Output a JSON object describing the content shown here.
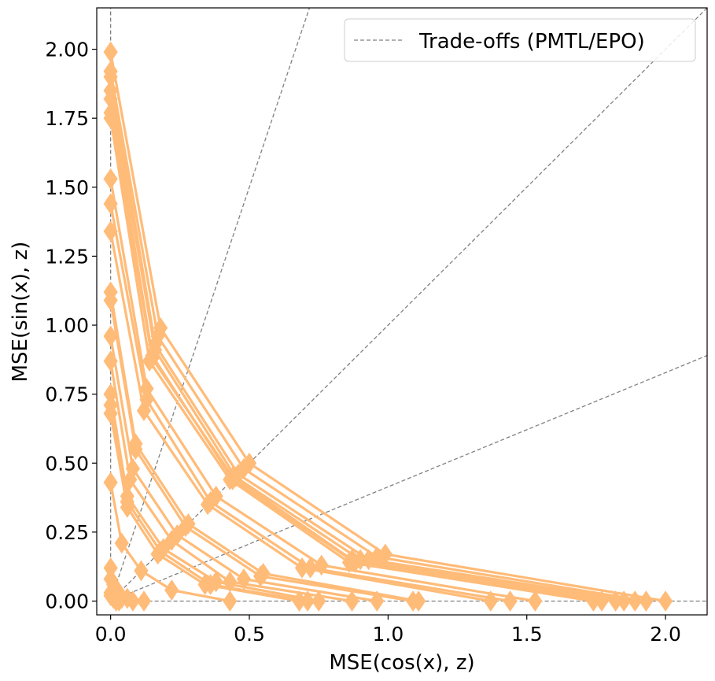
{
  "chart_data": {
    "type": "line",
    "xlabel": "MSE(cos(x), z)",
    "ylabel": "MSE(sin(x), z)",
    "xlim": [
      -0.05,
      2.15
    ],
    "ylim": [
      -0.05,
      2.15
    ],
    "xticks": [
      "0.0",
      "0.5",
      "1.0",
      "1.5",
      "2.0"
    ],
    "yticks": [
      "0.00",
      "0.25",
      "0.50",
      "0.75",
      "1.00",
      "1.25",
      "1.50",
      "1.75",
      "2.00"
    ],
    "legend": {
      "position": "top-right",
      "entries": [
        "Trade-offs (PMTL/EPO)"
      ]
    },
    "colors": {
      "front": "#ffbb78",
      "tradeoff": "#808080"
    },
    "tradeoff_slopes": [
      1000000000.0,
      3.0,
      1.0,
      0.414,
      0.0
    ],
    "fronts": [
      [
        [
          0.0,
          1.99
        ],
        [
          0.18,
          0.99
        ],
        [
          0.5,
          0.5
        ],
        [
          0.99,
          0.17
        ],
        [
          2.0,
          0.0
        ]
      ],
      [
        [
          0.0,
          1.92
        ],
        [
          0.17,
          0.96
        ],
        [
          0.48,
          0.48
        ],
        [
          0.96,
          0.16
        ],
        [
          1.93,
          0.0
        ]
      ],
      [
        [
          0.0,
          1.9
        ],
        [
          0.16,
          0.93
        ],
        [
          0.46,
          0.46
        ],
        [
          0.93,
          0.15
        ],
        [
          1.89,
          0.0
        ]
      ],
      [
        [
          0.0,
          1.85
        ],
        [
          0.16,
          0.91
        ],
        [
          0.45,
          0.45
        ],
        [
          0.9,
          0.15
        ],
        [
          1.85,
          0.0
        ]
      ],
      [
        [
          0.0,
          1.82
        ],
        [
          0.15,
          0.89
        ],
        [
          0.44,
          0.44
        ],
        [
          0.88,
          0.14
        ],
        [
          1.82,
          0.0
        ]
      ],
      [
        [
          0.0,
          1.77
        ],
        [
          0.15,
          0.88
        ],
        [
          0.44,
          0.45
        ],
        [
          0.87,
          0.15
        ],
        [
          1.77,
          0.0
        ]
      ],
      [
        [
          0.0,
          1.75
        ],
        [
          0.14,
          0.87
        ],
        [
          0.43,
          0.44
        ],
        [
          0.86,
          0.14
        ],
        [
          1.74,
          0.0
        ]
      ],
      [
        [
          0.0,
          1.53
        ],
        [
          0.13,
          0.77
        ],
        [
          0.38,
          0.38
        ],
        [
          0.76,
          0.13
        ],
        [
          1.53,
          0.0
        ]
      ],
      [
        [
          0.0,
          1.44
        ],
        [
          0.13,
          0.73
        ],
        [
          0.36,
          0.36
        ],
        [
          0.72,
          0.12
        ],
        [
          1.44,
          0.0
        ]
      ],
      [
        [
          0.0,
          1.34
        ],
        [
          0.12,
          0.69
        ],
        [
          0.35,
          0.35
        ],
        [
          0.69,
          0.12
        ],
        [
          1.37,
          0.0
        ]
      ],
      [
        [
          0.0,
          1.12
        ],
        [
          0.09,
          0.57
        ],
        [
          0.28,
          0.28
        ],
        [
          0.55,
          0.1
        ],
        [
          1.11,
          0.0
        ]
      ],
      [
        [
          0.0,
          1.09
        ],
        [
          0.09,
          0.55
        ],
        [
          0.27,
          0.27
        ],
        [
          0.54,
          0.09
        ],
        [
          1.09,
          0.0
        ]
      ],
      [
        [
          0.0,
          0.96
        ],
        [
          0.08,
          0.48
        ],
        [
          0.24,
          0.24
        ],
        [
          0.48,
          0.08
        ],
        [
          0.96,
          0.0
        ]
      ],
      [
        [
          0.0,
          0.87
        ],
        [
          0.07,
          0.44
        ],
        [
          0.22,
          0.22
        ],
        [
          0.43,
          0.07
        ],
        [
          0.87,
          0.0
        ]
      ],
      [
        [
          0.0,
          0.75
        ],
        [
          0.06,
          0.38
        ],
        [
          0.19,
          0.19
        ],
        [
          0.38,
          0.07
        ],
        [
          0.75,
          0.0
        ]
      ],
      [
        [
          0.0,
          0.71
        ],
        [
          0.06,
          0.36
        ],
        [
          0.18,
          0.18
        ],
        [
          0.36,
          0.06
        ],
        [
          0.71,
          0.0
        ]
      ],
      [
        [
          0.0,
          0.68
        ],
        [
          0.06,
          0.34
        ],
        [
          0.17,
          0.17
        ],
        [
          0.34,
          0.06
        ],
        [
          0.68,
          0.0
        ]
      ],
      [
        [
          0.0,
          0.43
        ],
        [
          0.04,
          0.21
        ],
        [
          0.11,
          0.11
        ],
        [
          0.22,
          0.04
        ],
        [
          0.43,
          0.0
        ]
      ],
      [
        [
          0.0,
          0.12
        ],
        [
          0.01,
          0.06
        ],
        [
          0.03,
          0.03
        ],
        [
          0.06,
          0.01
        ],
        [
          0.12,
          0.0
        ]
      ],
      [
        [
          0.0,
          0.08
        ],
        [
          0.01,
          0.04
        ],
        [
          0.02,
          0.02
        ],
        [
          0.04,
          0.01
        ],
        [
          0.08,
          0.0
        ]
      ],
      [
        [
          0.0,
          0.03
        ],
        [
          0.0,
          0.02
        ],
        [
          0.01,
          0.01
        ],
        [
          0.02,
          0.0
        ],
        [
          0.03,
          0.0
        ]
      ]
    ]
  }
}
